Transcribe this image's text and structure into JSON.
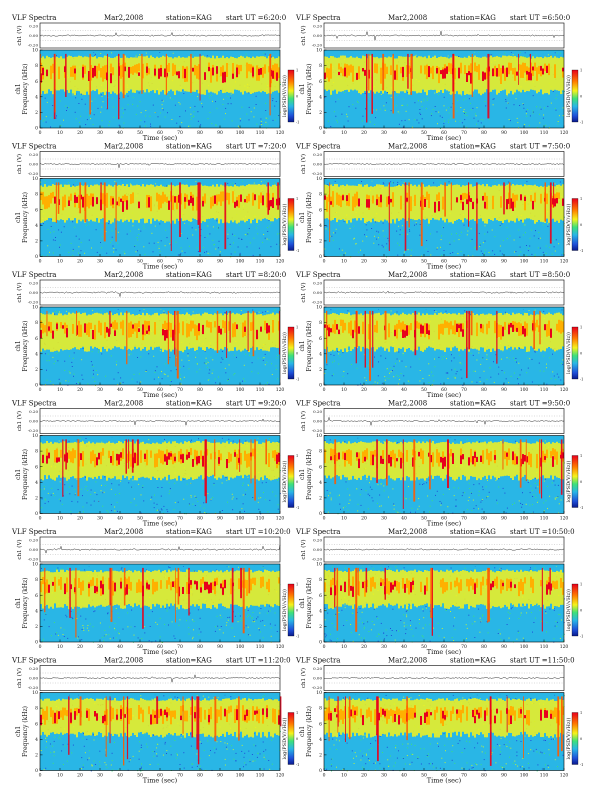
{
  "page": {
    "title_prefix": "VLF Spectra",
    "date": "Mar2,2008",
    "station": "station=KAG",
    "start_prefix": "start  UT  ="
  },
  "axis_text": {
    "time_label": "Time  (sec)",
    "freq_label": "Frequency (kHz)",
    "channel_label": "ch1",
    "wave_label": "ch1 (V)",
    "cbar_label": "log(PSD(V/√Hz))"
  },
  "colors": {
    "background": "#29b6e6",
    "cmap": [
      "#0a1a8c",
      "#1f4fd8",
      "#29b6e6",
      "#3ee07a",
      "#bff03a",
      "#f5f21c",
      "#ffb000",
      "#ff5a00",
      "#e8001c"
    ]
  },
  "chart_data": [
    {
      "type": "heatmap",
      "start_ut": "6:20:0",
      "x_range": [
        0,
        120
      ],
      "y_range": [
        0,
        10
      ],
      "wave_ticks": [
        "0.20",
        "0.00",
        "-0.20"
      ],
      "cbar_ticks": [
        "1",
        "0",
        "-1"
      ],
      "x_ticks": [
        0,
        10,
        20,
        30,
        40,
        50,
        60,
        70,
        80,
        90,
        100,
        110,
        120
      ],
      "y_ticks": [
        0,
        2,
        4,
        6,
        8,
        10
      ]
    },
    {
      "type": "heatmap",
      "start_ut": "6:50:0",
      "x_range": [
        0,
        120
      ],
      "y_range": [
        0,
        10
      ],
      "wave_ticks": [
        "0.20",
        "0.00",
        "-0.20"
      ],
      "cbar_ticks": [
        "1",
        "0",
        "-1"
      ],
      "x_ticks": [
        0,
        10,
        20,
        30,
        40,
        50,
        60,
        70,
        80,
        90,
        100,
        110,
        120
      ],
      "y_ticks": [
        0,
        2,
        4,
        6,
        8,
        10
      ]
    },
    {
      "type": "heatmap",
      "start_ut": "7:20:0",
      "x_range": [
        0,
        120
      ],
      "y_range": [
        0,
        10
      ],
      "wave_ticks": [
        "0.20",
        "0.00",
        "-0.20"
      ],
      "cbar_ticks": [
        "1",
        "0",
        "-1"
      ],
      "x_ticks": [
        0,
        10,
        20,
        30,
        40,
        50,
        60,
        70,
        80,
        90,
        100,
        110,
        120
      ],
      "y_ticks": [
        0,
        2,
        4,
        6,
        8,
        10
      ]
    },
    {
      "type": "heatmap",
      "start_ut": "7:50:0",
      "x_range": [
        0,
        120
      ],
      "y_range": [
        0,
        10
      ],
      "wave_ticks": [
        "0.20",
        "0.00",
        "-0.20"
      ],
      "cbar_ticks": [
        "1",
        "0",
        "-1"
      ],
      "x_ticks": [
        0,
        10,
        20,
        30,
        40,
        50,
        60,
        70,
        80,
        90,
        100,
        110,
        120
      ],
      "y_ticks": [
        0,
        2,
        4,
        6,
        8,
        10
      ]
    },
    {
      "type": "heatmap",
      "start_ut": "8:20:0",
      "x_range": [
        0,
        120
      ],
      "y_range": [
        0,
        10
      ],
      "wave_ticks": [
        "0.20",
        "0.00",
        "-0.20"
      ],
      "cbar_ticks": [
        "1",
        "0",
        "-1"
      ],
      "x_ticks": [
        0,
        10,
        20,
        30,
        40,
        50,
        60,
        70,
        80,
        90,
        100,
        110,
        120
      ],
      "y_ticks": [
        0,
        2,
        4,
        6,
        8,
        10
      ]
    },
    {
      "type": "heatmap",
      "start_ut": "8:50:0",
      "x_range": [
        0,
        120
      ],
      "y_range": [
        0,
        10
      ],
      "wave_ticks": [
        "0.20",
        "0.00",
        "-0.20"
      ],
      "cbar_ticks": [
        "1",
        "0",
        "-1"
      ],
      "x_ticks": [
        0,
        10,
        20,
        30,
        40,
        50,
        60,
        70,
        80,
        90,
        100,
        110,
        120
      ],
      "y_ticks": [
        0,
        2,
        4,
        6,
        8,
        10
      ]
    },
    {
      "type": "heatmap",
      "start_ut": "9:20:0",
      "x_range": [
        0,
        120
      ],
      "y_range": [
        0,
        10
      ],
      "wave_ticks": [
        "0.20",
        "0.00",
        "-0.20"
      ],
      "cbar_ticks": [
        "1",
        "0",
        "-1"
      ],
      "x_ticks": [
        0,
        10,
        20,
        30,
        40,
        50,
        60,
        70,
        80,
        90,
        100,
        110,
        120
      ],
      "y_ticks": [
        0,
        2,
        4,
        6,
        8,
        10
      ]
    },
    {
      "type": "heatmap",
      "start_ut": "9:50:0",
      "x_range": [
        0,
        120
      ],
      "y_range": [
        0,
        10
      ],
      "wave_ticks": [
        "0.20",
        "0.00",
        "-0.20"
      ],
      "cbar_ticks": [
        "1",
        "0",
        "-1"
      ],
      "x_ticks": [
        0,
        10,
        20,
        30,
        40,
        50,
        60,
        70,
        80,
        90,
        100,
        110,
        120
      ],
      "y_ticks": [
        0,
        2,
        4,
        6,
        8,
        10
      ]
    },
    {
      "type": "heatmap",
      "start_ut": "10:20:0",
      "x_range": [
        0,
        120
      ],
      "y_range": [
        0,
        10
      ],
      "wave_ticks": [
        "0.20",
        "0.00",
        "-0.20"
      ],
      "cbar_ticks": [
        "1",
        "0",
        "-1"
      ],
      "x_ticks": [
        0,
        10,
        20,
        30,
        40,
        50,
        60,
        70,
        80,
        90,
        100,
        110,
        120
      ],
      "y_ticks": [
        0,
        2,
        4,
        6,
        8,
        10
      ]
    },
    {
      "type": "heatmap",
      "start_ut": "10:50:0",
      "x_range": [
        0,
        120
      ],
      "y_range": [
        0,
        10
      ],
      "wave_ticks": [
        "0.20",
        "0.00",
        "-0.20"
      ],
      "cbar_ticks": [
        "1",
        "0",
        "-1"
      ],
      "x_ticks": [
        0,
        10,
        20,
        30,
        40,
        50,
        60,
        70,
        80,
        90,
        100,
        110,
        120
      ],
      "y_ticks": [
        0,
        2,
        4,
        6,
        8,
        10
      ]
    },
    {
      "type": "heatmap",
      "start_ut": "11:20:0",
      "x_range": [
        0,
        120
      ],
      "y_range": [
        0,
        10
      ],
      "wave_ticks": [
        "0.20",
        "0.00",
        "-0.20"
      ],
      "cbar_ticks": [
        "1",
        "0",
        "-1"
      ],
      "x_ticks": [
        0,
        10,
        20,
        30,
        40,
        50,
        60,
        70,
        80,
        90,
        100,
        110,
        120
      ],
      "y_ticks": [
        0,
        2,
        4,
        6,
        8,
        10
      ]
    },
    {
      "type": "heatmap",
      "start_ut": "11:50:0",
      "x_range": [
        0,
        120
      ],
      "y_range": [
        0,
        10
      ],
      "wave_ticks": [
        "0.20",
        "0.00",
        "-0.20"
      ],
      "cbar_ticks": [
        "1",
        "0",
        "-1"
      ],
      "x_ticks": [
        0,
        10,
        20,
        30,
        40,
        50,
        60,
        70,
        80,
        90,
        100,
        110,
        120
      ],
      "y_ticks": [
        0,
        2,
        4,
        6,
        8,
        10
      ]
    }
  ]
}
